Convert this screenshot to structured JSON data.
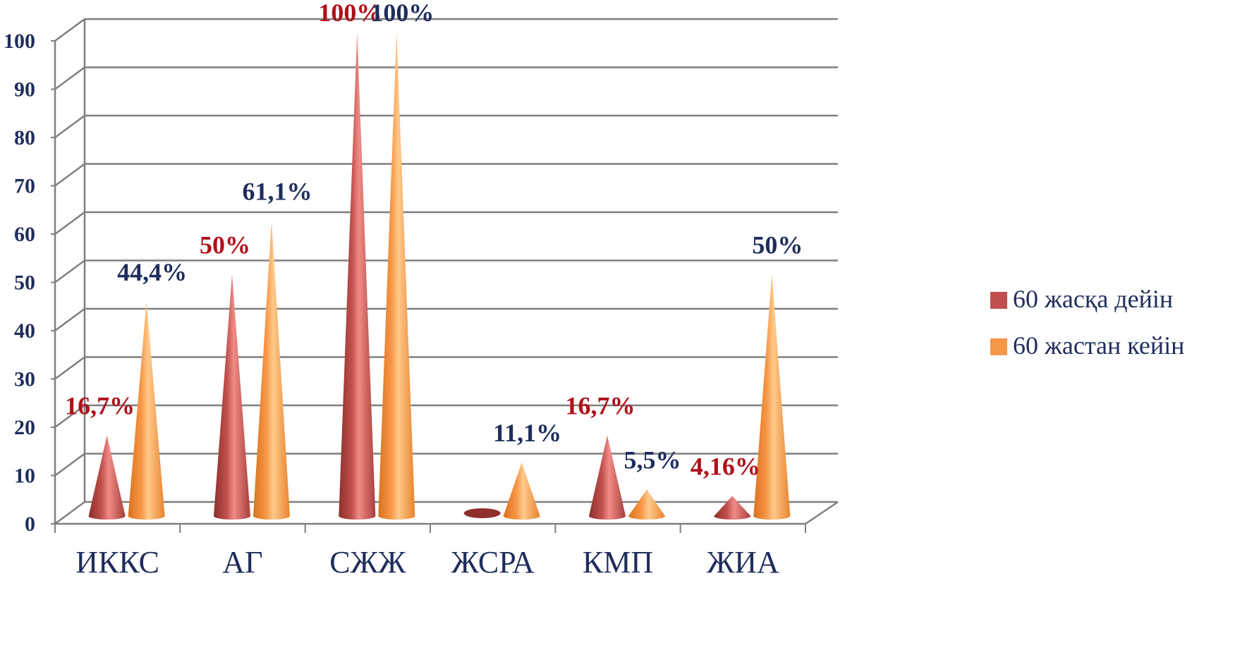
{
  "chart_data": {
    "type": "bar",
    "subtype": "3d-cone",
    "title": "",
    "xlabel": "",
    "ylabel": "",
    "ylim": [
      0,
      100
    ],
    "y_ticks": [
      "0",
      "10",
      "20",
      "30",
      "40",
      "50",
      "60",
      "70",
      "80",
      "90",
      "100"
    ],
    "grid": true,
    "legend_position": "right",
    "categories": [
      "ИККС",
      "АГ",
      "СЖЖ",
      "ЖСРА",
      "КМП",
      "ЖИА"
    ],
    "series": [
      {
        "name": "60 жасқа дейін",
        "color": "#c0504d",
        "values": [
          16.7,
          50,
          100,
          0,
          16.7,
          4.16
        ],
        "labels": [
          "16,7%",
          "50%",
          "100%",
          "",
          "16,7%",
          "4,16%"
        ]
      },
      {
        "name": "60 жастан кейін",
        "color": "#f79646",
        "values": [
          44.4,
          61.1,
          100,
          11.1,
          5.5,
          50
        ],
        "labels": [
          "44,4%",
          "61,1%",
          "100%",
          "11,1%",
          "5,5%",
          "50%"
        ]
      }
    ],
    "label_colors": {
      "series0": "#b0101a",
      "series1": "#1f2d5c"
    }
  }
}
